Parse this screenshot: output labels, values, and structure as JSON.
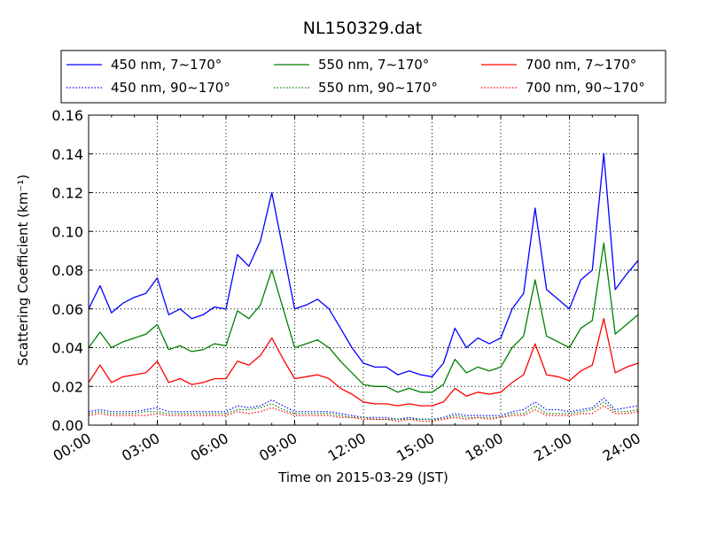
{
  "chart_data": {
    "type": "line",
    "title": "NL150329.dat",
    "xlabel": "Time on 2015-03-29 (JST)",
    "ylabel": "Scattering Coefficient (km⁻¹)",
    "xlim": [
      "2015-03-29 00:00",
      "2015-03-30 00:00"
    ],
    "ylim": [
      0,
      0.16
    ],
    "grid": true,
    "legend_position": "top",
    "x_tick_labels": [
      "00:00",
      "03:00",
      "06:00",
      "09:00",
      "12:00",
      "15:00",
      "18:00",
      "21:00",
      "24:00"
    ],
    "y_tick_labels": [
      "0.00",
      "0.02",
      "0.04",
      "0.06",
      "0.08",
      "0.10",
      "0.12",
      "0.14",
      "0.16"
    ],
    "x_hours": [
      0,
      0.5,
      1,
      1.5,
      2,
      2.5,
      3,
      3.5,
      4,
      4.5,
      5,
      5.5,
      6,
      6.5,
      7,
      7.5,
      8,
      8.5,
      9,
      9.5,
      10,
      10.5,
      11,
      11.5,
      12,
      12.5,
      13,
      13.5,
      14,
      14.5,
      15,
      15.5,
      16,
      16.5,
      17,
      17.5,
      18,
      18.5,
      19,
      19.5,
      20,
      20.5,
      21,
      21.5,
      22,
      22.5,
      23,
      23.5,
      24
    ],
    "series": [
      {
        "name": "450 nm, 7∼170°",
        "color": "#0000ff",
        "style": "solid",
        "values": [
          0.06,
          0.072,
          0.058,
          0.063,
          0.066,
          0.068,
          0.076,
          0.057,
          0.06,
          0.055,
          0.057,
          0.061,
          0.06,
          0.088,
          0.082,
          0.095,
          0.12,
          0.09,
          0.06,
          0.062,
          0.065,
          0.06,
          0.05,
          0.04,
          0.032,
          0.03,
          0.03,
          0.026,
          0.028,
          0.026,
          0.025,
          0.032,
          0.05,
          0.04,
          0.045,
          0.042,
          0.045,
          0.06,
          0.068,
          0.112,
          0.07,
          0.065,
          0.06,
          0.075,
          0.08,
          0.14,
          0.07,
          0.078,
          0.085
        ]
      },
      {
        "name": "450 nm, 90∼170°",
        "color": "#0000ff",
        "style": "dotted",
        "values": [
          0.007,
          0.008,
          0.007,
          0.007,
          0.007,
          0.008,
          0.009,
          0.007,
          0.007,
          0.007,
          0.007,
          0.007,
          0.007,
          0.01,
          0.009,
          0.01,
          0.013,
          0.01,
          0.007,
          0.007,
          0.007,
          0.007,
          0.006,
          0.005,
          0.004,
          0.004,
          0.004,
          0.003,
          0.004,
          0.003,
          0.003,
          0.004,
          0.006,
          0.005,
          0.005,
          0.005,
          0.005,
          0.007,
          0.008,
          0.012,
          0.008,
          0.008,
          0.007,
          0.008,
          0.009,
          0.014,
          0.008,
          0.009,
          0.01
        ]
      },
      {
        "name": "550 nm, 7∼170°",
        "color": "#008000",
        "style": "solid",
        "values": [
          0.04,
          0.048,
          0.04,
          0.043,
          0.045,
          0.047,
          0.052,
          0.039,
          0.041,
          0.038,
          0.039,
          0.042,
          0.041,
          0.059,
          0.055,
          0.062,
          0.08,
          0.06,
          0.04,
          0.042,
          0.044,
          0.04,
          0.033,
          0.027,
          0.021,
          0.02,
          0.02,
          0.017,
          0.019,
          0.017,
          0.017,
          0.021,
          0.034,
          0.027,
          0.03,
          0.028,
          0.03,
          0.04,
          0.046,
          0.075,
          0.046,
          0.043,
          0.04,
          0.05,
          0.054,
          0.094,
          0.047,
          0.052,
          0.057
        ]
      },
      {
        "name": "550 nm, 90∼170°",
        "color": "#008000",
        "style": "dotted",
        "values": [
          0.006,
          0.007,
          0.006,
          0.006,
          0.006,
          0.007,
          0.007,
          0.006,
          0.006,
          0.006,
          0.006,
          0.006,
          0.006,
          0.008,
          0.008,
          0.009,
          0.011,
          0.008,
          0.006,
          0.006,
          0.006,
          0.006,
          0.005,
          0.004,
          0.004,
          0.003,
          0.003,
          0.003,
          0.003,
          0.003,
          0.003,
          0.003,
          0.005,
          0.004,
          0.004,
          0.004,
          0.004,
          0.006,
          0.006,
          0.01,
          0.006,
          0.006,
          0.006,
          0.007,
          0.008,
          0.012,
          0.007,
          0.007,
          0.008
        ]
      },
      {
        "name": "700 nm, 7∼170°",
        "color": "#ff0000",
        "style": "solid",
        "values": [
          0.022,
          0.031,
          0.022,
          0.025,
          0.026,
          0.027,
          0.033,
          0.022,
          0.024,
          0.021,
          0.022,
          0.024,
          0.024,
          0.033,
          0.031,
          0.036,
          0.045,
          0.034,
          0.024,
          0.025,
          0.026,
          0.024,
          0.019,
          0.016,
          0.012,
          0.011,
          0.011,
          0.01,
          0.011,
          0.01,
          0.01,
          0.012,
          0.019,
          0.015,
          0.017,
          0.016,
          0.017,
          0.022,
          0.026,
          0.042,
          0.026,
          0.025,
          0.023,
          0.028,
          0.031,
          0.055,
          0.027,
          0.03,
          0.032
        ]
      },
      {
        "name": "700 nm, 90∼170°",
        "color": "#ff0000",
        "style": "dotted",
        "values": [
          0.005,
          0.006,
          0.005,
          0.005,
          0.005,
          0.005,
          0.006,
          0.005,
          0.005,
          0.005,
          0.005,
          0.005,
          0.005,
          0.007,
          0.006,
          0.007,
          0.009,
          0.007,
          0.005,
          0.005,
          0.005,
          0.005,
          0.004,
          0.004,
          0.003,
          0.003,
          0.003,
          0.002,
          0.003,
          0.002,
          0.002,
          0.003,
          0.004,
          0.003,
          0.004,
          0.003,
          0.004,
          0.005,
          0.005,
          0.008,
          0.005,
          0.005,
          0.005,
          0.006,
          0.006,
          0.01,
          0.006,
          0.006,
          0.007
        ]
      }
    ]
  }
}
